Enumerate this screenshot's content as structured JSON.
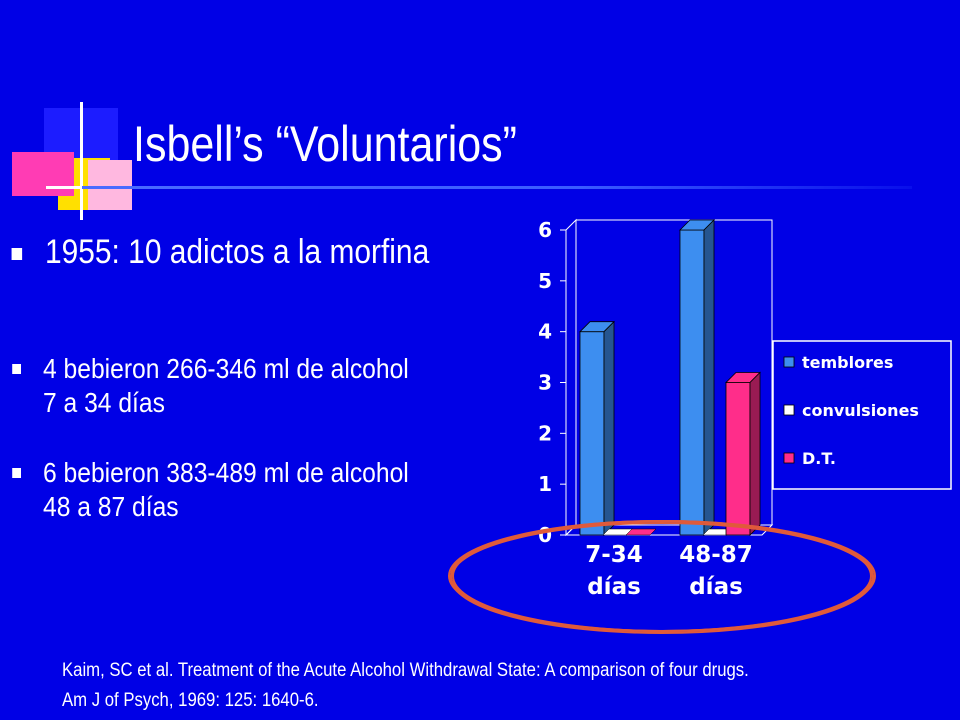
{
  "title": "Isbell’s “Voluntarios”",
  "bullets": [
    "1955: 10 adictos a la morfina",
    [
      "4 bebieron 266-346 ml de alcohol",
      "7 a 34 días"
    ],
    [
      "6 bebieron 383-489  ml de alcohol",
      "48 a 87 días"
    ]
  ],
  "reference": [
    "Kaim, SC et al. Treatment of the Acute Alcohol Withdrawal State:  A comparison of four drugs.",
    "Am J of Psych, 1969: 125: 1640-6."
  ],
  "colors": {
    "background": "#0000e6",
    "temblores": "#3d8ef0",
    "convulsiones": "#ffffff",
    "dt": "#ff2d8a",
    "highlight_ellipse": "#e05a3a"
  },
  "chart_data": {
    "type": "bar",
    "categories": [
      [
        "7-34",
        "días"
      ],
      [
        "48-87",
        "días"
      ]
    ],
    "series": [
      {
        "name": "temblores",
        "values": [
          4,
          6
        ]
      },
      {
        "name": "convulsiones",
        "values": [
          0,
          0
        ]
      },
      {
        "name": "D.T.",
        "values": [
          0,
          3
        ]
      }
    ],
    "ylim": [
      0,
      6
    ],
    "yticks": [
      "0",
      "1",
      "2",
      "3",
      "4",
      "5",
      "6"
    ],
    "grid": false,
    "legend_position": "right",
    "style": "3d"
  }
}
